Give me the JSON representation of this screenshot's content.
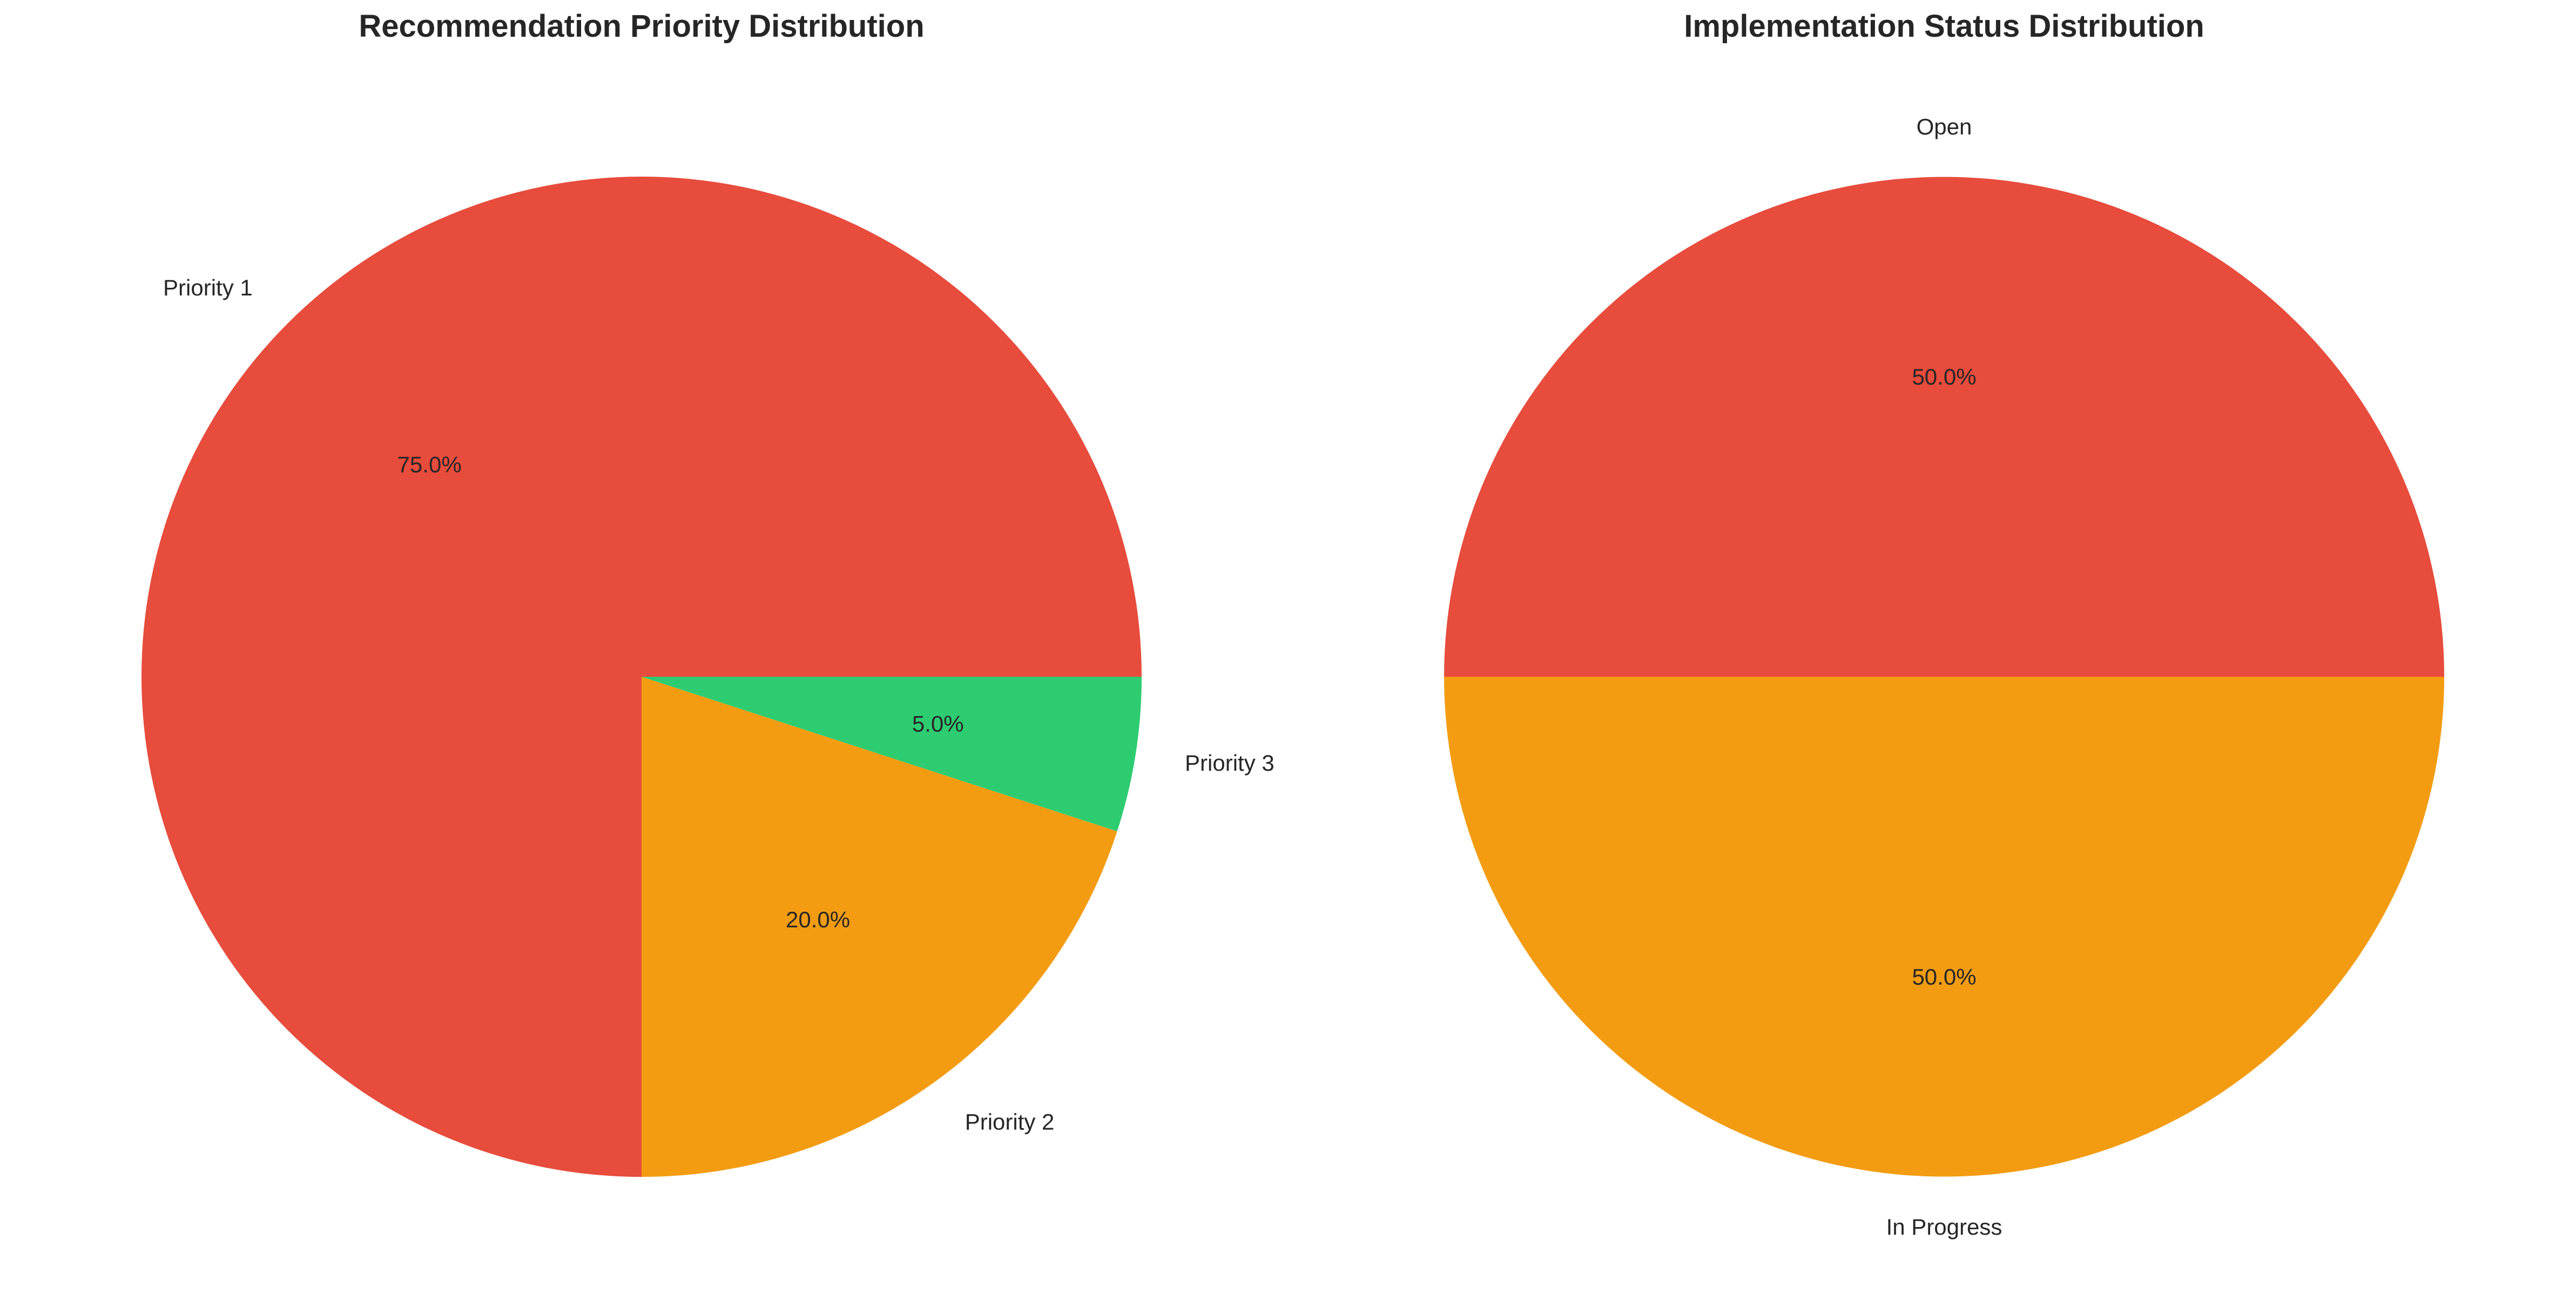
{
  "chart_data": [
    {
      "type": "pie",
      "title": "Recommendation Priority Distribution",
      "categories": [
        "Priority 1",
        "Priority 2",
        "Priority 3"
      ],
      "values": [
        75.0,
        20.0,
        5.0
      ],
      "value_labels": [
        "75.0%",
        "20.0%",
        "5.0%"
      ],
      "colors": [
        "#e74c3c",
        "#f39c12",
        "#2ecc71"
      ],
      "start_angle_deg": 0,
      "direction": "counterclockwise"
    },
    {
      "type": "pie",
      "title": "Implementation Status Distribution",
      "categories": [
        "Open",
        "In Progress"
      ],
      "values": [
        50.0,
        50.0
      ],
      "value_labels": [
        "50.0%",
        "50.0%"
      ],
      "colors": [
        "#e74c3c",
        "#f39c12"
      ],
      "start_angle_deg": 0,
      "direction": "counterclockwise"
    }
  ]
}
